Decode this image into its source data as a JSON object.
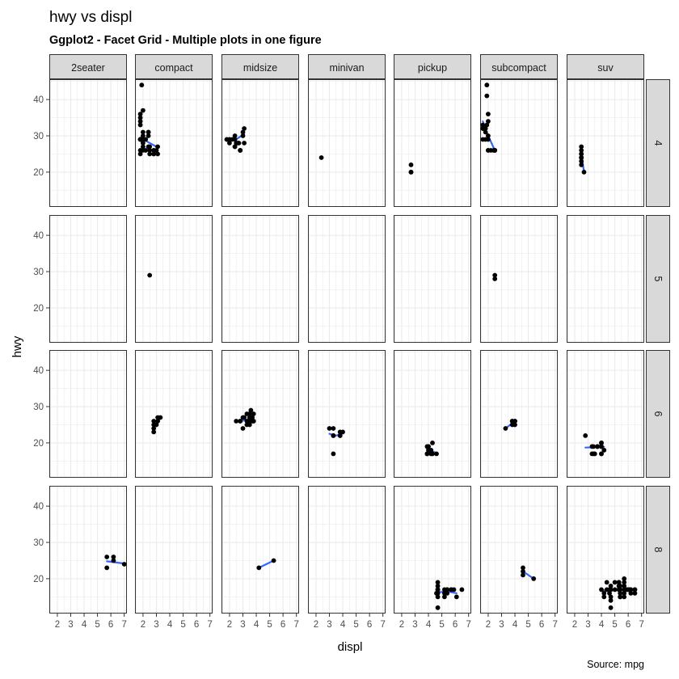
{
  "chart_data": {
    "type": "scatter",
    "title": "hwy vs displ",
    "subtitle": "Ggplot2 - Facet Grid - Multiple plots in one figure",
    "xlabel": "displ",
    "ylabel": "hwy",
    "caption": "Source: mpg",
    "xlim": [
      1.4,
      7.2
    ],
    "ylim": [
      10.4,
      45.6
    ],
    "x_ticks": [
      2,
      3,
      4,
      5,
      6,
      7
    ],
    "y_ticks": [
      20,
      30,
      40
    ],
    "grid": true,
    "col_facets": [
      "2seater",
      "compact",
      "midsize",
      "minivan",
      "pickup",
      "subcompact",
      "suv"
    ],
    "row_facets": [
      "4",
      "5",
      "6",
      "8"
    ],
    "colors": {
      "points": "#000000",
      "smooth": "#3366ff",
      "strip_bg": "#d9d9d9",
      "grid": "#ebebeb"
    },
    "panels": [
      {
        "row": "4",
        "col": "compact",
        "points": [
          [
            1.8,
            29
          ],
          [
            1.8,
            29
          ],
          [
            2.0,
            31
          ],
          [
            2.0,
            30
          ],
          [
            2.8,
            26
          ],
          [
            2.8,
            26
          ],
          [
            3.1,
            27
          ],
          [
            1.8,
            26
          ],
          [
            1.8,
            25
          ],
          [
            2.0,
            28
          ],
          [
            2.0,
            27
          ],
          [
            2.8,
            25
          ],
          [
            2.8,
            25
          ],
          [
            3.1,
            25
          ],
          [
            2.4,
            27
          ],
          [
            2.4,
            30
          ],
          [
            2.2,
            26
          ],
          [
            2.2,
            29
          ],
          [
            2.4,
            31
          ],
          [
            2.4,
            31
          ],
          [
            3.0,
            26
          ],
          [
            1.9,
            44
          ],
          [
            2.0,
            29
          ],
          [
            2.0,
            26
          ],
          [
            2.0,
            29
          ],
          [
            1.8,
            29
          ],
          [
            1.8,
            29
          ],
          [
            2.5,
            26
          ],
          [
            2.5,
            25
          ],
          [
            1.8,
            34
          ],
          [
            1.8,
            36
          ],
          [
            2.0,
            37
          ],
          [
            2.5,
            27
          ],
          [
            1.8,
            33
          ],
          [
            1.8,
            35
          ]
        ],
        "smooth": [
          [
            1.8,
            29.5
          ],
          [
            2.4,
            28.2
          ],
          [
            3.1,
            26.8
          ]
        ]
      },
      {
        "row": "4",
        "col": "midsize",
        "points": [
          [
            1.8,
            29
          ],
          [
            1.8,
            29
          ],
          [
            2.0,
            28
          ],
          [
            2.0,
            29
          ],
          [
            2.8,
            26
          ],
          [
            2.8,
            26
          ],
          [
            3.1,
            28
          ],
          [
            2.4,
            27
          ],
          [
            2.4,
            30
          ],
          [
            2.5,
            28
          ],
          [
            3.0,
            31
          ],
          [
            3.0,
            30
          ],
          [
            3.1,
            32
          ],
          [
            2.7,
            28
          ],
          [
            2.4,
            29
          ],
          [
            2.2,
            29
          ],
          [
            2.4,
            27
          ],
          [
            2.0,
            29
          ],
          [
            2.8,
            26
          ],
          [
            2.6,
            28
          ]
        ],
        "smooth": [
          [
            1.8,
            29.0
          ],
          [
            2.4,
            28.8
          ],
          [
            3.1,
            30.5
          ]
        ]
      },
      {
        "row": "4",
        "col": "minivan",
        "points": [
          [
            2.4,
            24
          ]
        ]
      },
      {
        "row": "4",
        "col": "pickup",
        "points": [
          [
            2.7,
            20
          ],
          [
            2.7,
            22
          ],
          [
            2.7,
            20
          ]
        ]
      },
      {
        "row": "4",
        "col": "subcompact",
        "points": [
          [
            1.8,
            29
          ],
          [
            1.9,
            44
          ],
          [
            1.9,
            41
          ],
          [
            2.0,
            36
          ],
          [
            2.0,
            26
          ],
          [
            2.0,
            26
          ],
          [
            2.0,
            29
          ],
          [
            2.2,
            26
          ],
          [
            2.5,
            26
          ],
          [
            2.5,
            26
          ],
          [
            2.0,
            30
          ],
          [
            1.6,
            33
          ],
          [
            1.6,
            32
          ],
          [
            1.6,
            32
          ],
          [
            1.6,
            29
          ],
          [
            1.8,
            32
          ],
          [
            2.0,
            34
          ],
          [
            1.9,
            33
          ],
          [
            1.8,
            31
          ],
          [
            2.4,
            26
          ],
          [
            2.5,
            26
          ]
        ],
        "smooth": [
          [
            1.6,
            34.0
          ],
          [
            2.0,
            30.0
          ],
          [
            2.5,
            26.0
          ]
        ]
      },
      {
        "row": "4",
        "col": "suv",
        "points": [
          [
            2.5,
            25
          ],
          [
            2.5,
            27
          ],
          [
            2.5,
            26
          ],
          [
            2.5,
            24
          ],
          [
            2.7,
            20
          ],
          [
            2.5,
            24
          ],
          [
            2.5,
            22
          ],
          [
            2.5,
            23
          ],
          [
            2.5,
            24
          ],
          [
            2.5,
            25
          ]
        ],
        "smooth": [
          [
            2.5,
            25.0
          ],
          [
            2.7,
            20.0
          ]
        ]
      },
      {
        "row": "5",
        "col": "compact",
        "points": [
          [
            2.5,
            29
          ]
        ]
      },
      {
        "row": "5",
        "col": "subcompact",
        "points": [
          [
            2.5,
            29
          ],
          [
            2.5,
            28
          ]
        ]
      },
      {
        "row": "6",
        "col": "compact",
        "points": [
          [
            2.8,
            23
          ],
          [
            2.8,
            25
          ],
          [
            2.8,
            24
          ],
          [
            3.1,
            26
          ],
          [
            3.1,
            27
          ],
          [
            2.8,
            26
          ],
          [
            3.3,
            27
          ],
          [
            3.0,
            25
          ]
        ],
        "smooth": [
          [
            2.8,
            24.2
          ],
          [
            3.3,
            26.8
          ]
        ]
      },
      {
        "row": "6",
        "col": "midsize",
        "points": [
          [
            2.8,
            26
          ],
          [
            2.8,
            26
          ],
          [
            3.1,
            27
          ],
          [
            3.0,
            24
          ],
          [
            3.3,
            26
          ],
          [
            3.5,
            28
          ],
          [
            3.5,
            26
          ],
          [
            3.6,
            29
          ],
          [
            3.8,
            26
          ],
          [
            3.5,
            25
          ],
          [
            3.7,
            27
          ],
          [
            3.3,
            28
          ],
          [
            3.8,
            28
          ],
          [
            3.5,
            27
          ],
          [
            2.5,
            26
          ],
          [
            3.0,
            27
          ],
          [
            3.3,
            25
          ],
          [
            3.8,
            26
          ],
          [
            3.5,
            28
          ],
          [
            3.7,
            26
          ]
        ],
        "smooth": [
          [
            2.5,
            25.7
          ],
          [
            3.8,
            26.8
          ]
        ]
      },
      {
        "row": "6",
        "col": "minivan",
        "points": [
          [
            3.0,
            24
          ],
          [
            3.3,
            24
          ],
          [
            3.3,
            22
          ],
          [
            3.3,
            17
          ],
          [
            3.8,
            22
          ],
          [
            3.8,
            22
          ],
          [
            4.0,
            23
          ],
          [
            3.8,
            23
          ],
          [
            3.3,
            22
          ]
        ],
        "smooth": [
          [
            3.0,
            22.5
          ],
          [
            3.5,
            22.0
          ],
          [
            4.0,
            22.6
          ]
        ]
      },
      {
        "row": "6",
        "col": "pickup",
        "points": [
          [
            3.9,
            17
          ],
          [
            3.9,
            17
          ],
          [
            3.9,
            19
          ],
          [
            4.0,
            18
          ],
          [
            4.0,
            19
          ],
          [
            4.2,
            17
          ],
          [
            4.2,
            18
          ],
          [
            4.0,
            19
          ],
          [
            4.3,
            17
          ],
          [
            4.6,
            17
          ],
          [
            4.3,
            20
          ]
        ],
        "smooth": [
          [
            3.9,
            18.3
          ],
          [
            4.6,
            17.2
          ]
        ]
      },
      {
        "row": "6",
        "col": "subcompact",
        "points": [
          [
            3.3,
            24
          ],
          [
            3.8,
            26
          ],
          [
            3.8,
            25
          ],
          [
            4.0,
            26
          ],
          [
            4.0,
            25
          ],
          [
            3.8,
            26
          ],
          [
            4.0,
            26
          ]
        ],
        "smooth": [
          [
            3.3,
            24.0
          ],
          [
            4.0,
            26.0
          ]
        ]
      },
      {
        "row": "6",
        "col": "suv",
        "points": [
          [
            2.8,
            22
          ],
          [
            3.3,
            19
          ],
          [
            3.7,
            19
          ],
          [
            4.0,
            19
          ],
          [
            4.0,
            17
          ],
          [
            3.3,
            17
          ],
          [
            4.0,
            20
          ],
          [
            3.4,
            17
          ],
          [
            3.4,
            19
          ],
          [
            4.0,
            17
          ],
          [
            3.7,
            19
          ],
          [
            3.7,
            19
          ],
          [
            4.0,
            20
          ],
          [
            4.2,
            18
          ],
          [
            3.5,
            17
          ],
          [
            4.0,
            19
          ]
        ],
        "smooth": [
          [
            2.8,
            18.7
          ],
          [
            4.2,
            18.9
          ]
        ]
      },
      {
        "row": "8",
        "col": "2seater",
        "points": [
          [
            5.7,
            26
          ],
          [
            5.7,
            23
          ],
          [
            6.2,
            26
          ],
          [
            6.2,
            25
          ],
          [
            7.0,
            24
          ]
        ],
        "smooth": [
          [
            5.7,
            24.8
          ],
          [
            7.0,
            24.2
          ]
        ]
      },
      {
        "row": "8",
        "col": "midsize",
        "points": [
          [
            4.2,
            23
          ],
          [
            5.3,
            25
          ]
        ],
        "smooth": [
          [
            4.2,
            23.0
          ],
          [
            5.3,
            25.0
          ]
        ]
      },
      {
        "row": "8",
        "col": "pickup",
        "points": [
          [
            4.7,
            12
          ],
          [
            4.7,
            15
          ],
          [
            4.7,
            16
          ],
          [
            4.7,
            17
          ],
          [
            5.2,
            16
          ],
          [
            5.2,
            17
          ],
          [
            5.7,
            17
          ],
          [
            5.9,
            17
          ],
          [
            4.7,
            19
          ],
          [
            4.7,
            17
          ],
          [
            5.4,
            17
          ],
          [
            5.4,
            16
          ],
          [
            4.6,
            16
          ],
          [
            5.4,
            17
          ],
          [
            4.7,
            17
          ],
          [
            5.2,
            15
          ],
          [
            5.7,
            17
          ],
          [
            6.1,
            15
          ],
          [
            6.5,
            17
          ],
          [
            4.7,
            18
          ]
        ],
        "smooth": [
          [
            4.6,
            16.2
          ],
          [
            5.4,
            16.5
          ],
          [
            6.1,
            16.0
          ]
        ]
      },
      {
        "row": "8",
        "col": "subcompact",
        "points": [
          [
            4.6,
            23
          ],
          [
            4.6,
            22
          ],
          [
            4.6,
            21
          ],
          [
            5.4,
            20
          ]
        ],
        "smooth": [
          [
            4.6,
            22.0
          ],
          [
            5.4,
            20.0
          ]
        ]
      },
      {
        "row": "8",
        "col": "suv",
        "points": [
          [
            4.7,
            12
          ],
          [
            4.7,
            15
          ],
          [
            5.3,
            17
          ],
          [
            5.3,
            19
          ],
          [
            5.7,
            18
          ],
          [
            6.0,
            17
          ],
          [
            5.7,
            20
          ],
          [
            6.2,
            17
          ],
          [
            5.4,
            15
          ],
          [
            5.4,
            18
          ],
          [
            6.5,
            17
          ],
          [
            4.6,
            17
          ],
          [
            5.4,
            17
          ],
          [
            5.7,
            16
          ],
          [
            5.4,
            15
          ],
          [
            4.0,
            17
          ],
          [
            4.7,
            17
          ],
          [
            5.7,
            19
          ],
          [
            4.4,
            19
          ],
          [
            4.6,
            16
          ],
          [
            6.1,
            17
          ],
          [
            5.0,
            17
          ],
          [
            5.0,
            19
          ],
          [
            5.4,
            17
          ],
          [
            6.5,
            16
          ],
          [
            4.2,
            15
          ],
          [
            4.7,
            18
          ],
          [
            5.3,
            19
          ],
          [
            5.7,
            17
          ],
          [
            6.2,
            16
          ],
          [
            4.7,
            14
          ],
          [
            5.4,
            16
          ],
          [
            4.2,
            16
          ],
          [
            4.4,
            17
          ],
          [
            5.7,
            15
          ],
          [
            5.9,
            17
          ],
          [
            6.5,
            17
          ],
          [
            4.7,
            17
          ],
          [
            5.3,
            18
          ]
        ],
        "smooth": [
          [
            4.0,
            16.8
          ],
          [
            5.3,
            16.9
          ],
          [
            6.5,
            16.8
          ]
        ]
      }
    ]
  }
}
